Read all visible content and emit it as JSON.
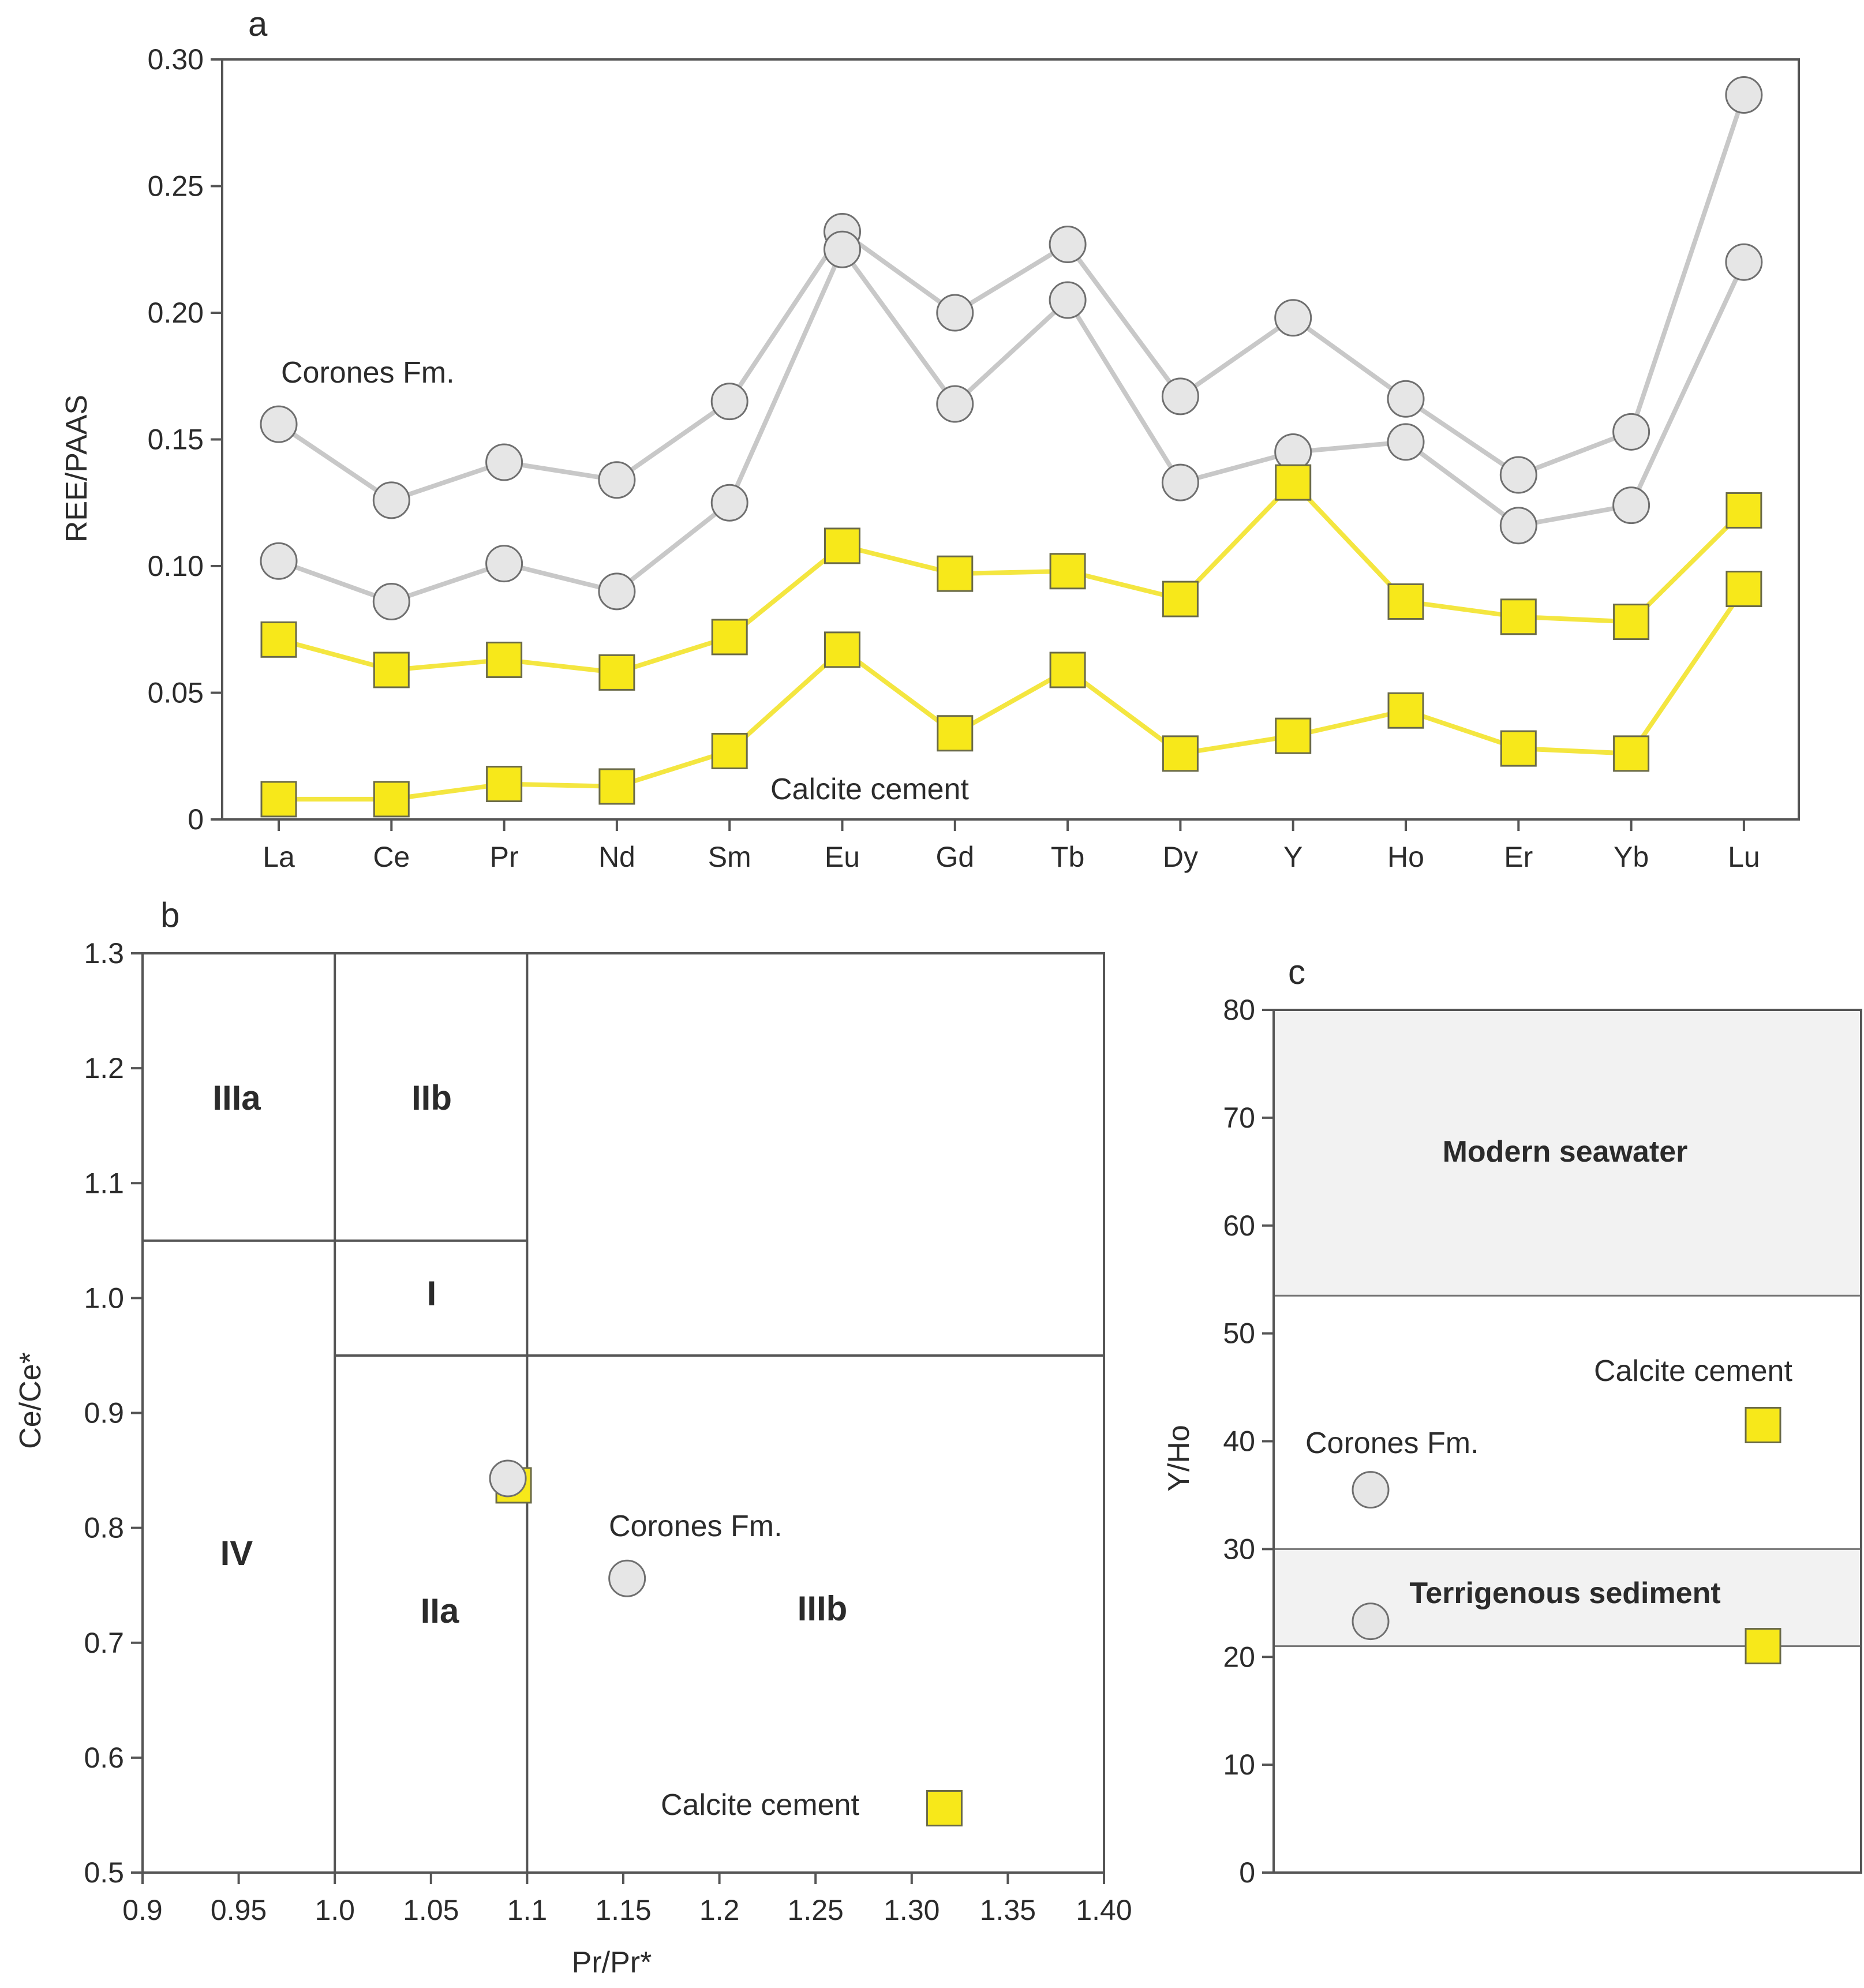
{
  "colors": {
    "corones": "#c8c8c8",
    "corones_fill": "#e6e6e6",
    "calcite": "#f4e640",
    "calcite_fill": "#f7e81a",
    "frame": "#555555",
    "zone": "#f2f2f2"
  },
  "chart_data": [
    {
      "id": "a",
      "panel_label": "a",
      "type": "line",
      "ylabel": "REE/PAAS",
      "xlabel": "",
      "categories": [
        "La",
        "Ce",
        "Pr",
        "Nd",
        "Sm",
        "Eu",
        "Gd",
        "Tb",
        "Dy",
        "Y",
        "Ho",
        "Er",
        "Yb",
        "Lu"
      ],
      "ylim": [
        0,
        0.3
      ],
      "yticks": [
        0,
        0.05,
        0.1,
        0.15,
        0.2,
        0.25,
        0.3
      ],
      "ytick_labels": [
        "0",
        "0.05",
        "0.10",
        "0.15",
        "0.20",
        "0.25",
        "0.30"
      ],
      "series": [
        {
          "name": "Corones Fm. 1",
          "group": "Corones Fm.",
          "marker": "circle",
          "values": [
            0.156,
            0.126,
            0.141,
            0.134,
            0.165,
            0.232,
            0.2,
            0.227,
            0.167,
            0.198,
            0.166,
            0.136,
            0.153,
            0.286
          ]
        },
        {
          "name": "Corones Fm. 2",
          "group": "Corones Fm.",
          "marker": "circle",
          "values": [
            0.102,
            0.086,
            0.101,
            0.09,
            0.125,
            0.225,
            0.164,
            0.205,
            0.133,
            0.145,
            0.149,
            0.116,
            0.124,
            0.22
          ]
        },
        {
          "name": "Calcite cement 1",
          "group": "Calcite cement",
          "marker": "square",
          "values": [
            0.071,
            0.059,
            0.063,
            0.058,
            0.072,
            0.108,
            0.097,
            0.098,
            0.087,
            0.133,
            0.086,
            0.08,
            0.078,
            0.122
          ]
        },
        {
          "name": "Calcite cement 2",
          "group": "Calcite cement",
          "marker": "square",
          "values": [
            0.008,
            0.008,
            0.014,
            0.013,
            0.027,
            0.067,
            0.034,
            0.059,
            0.026,
            0.033,
            0.043,
            0.028,
            0.026,
            0.091
          ]
        }
      ],
      "annotations": {
        "corones": "Corones Fm.",
        "calcite": "Calcite cement"
      }
    },
    {
      "id": "b",
      "panel_label": "b",
      "type": "scatter",
      "xlabel": "Pr/Pr*",
      "ylabel": "Ce/Ce*",
      "xlim": [
        0.9,
        1.4
      ],
      "ylim": [
        0.5,
        1.3
      ],
      "xticks": [
        0.9,
        0.95,
        1.0,
        1.05,
        1.1,
        1.15,
        1.2,
        1.25,
        1.3,
        1.35,
        1.4
      ],
      "xtick_labels": [
        "0.9",
        "0.95",
        "1.0",
        "1.05",
        "1.1",
        "1.15",
        "1.2",
        "1.25",
        "1.30",
        "1.35",
        "1.40"
      ],
      "yticks": [
        0.5,
        0.6,
        0.7,
        0.8,
        0.9,
        1.0,
        1.1,
        1.2,
        1.3
      ],
      "ytick_labels": [
        "0.5",
        "0.6",
        "0.7",
        "0.8",
        "0.9",
        "1.0",
        "1.1",
        "1.2",
        "1.3"
      ],
      "regions": [
        "IIIa",
        "IIb",
        "I",
        "IV",
        "IIa",
        "IIIb"
      ],
      "series": [
        {
          "name": "Corones Fm.",
          "marker": "circle",
          "points": [
            [
              1.09,
              0.843
            ],
            [
              1.152,
              0.756
            ]
          ]
        },
        {
          "name": "Calcite cement",
          "marker": "square",
          "points": [
            [
              1.093,
              0.837
            ],
            [
              1.317,
              0.556
            ]
          ]
        }
      ],
      "annotations": {
        "corones": "Corones Fm.",
        "calcite": "Calcite cement"
      }
    },
    {
      "id": "c",
      "panel_label": "c",
      "type": "scatter",
      "xlabel": "",
      "ylabel": "Y/Ho",
      "ylim": [
        0,
        80
      ],
      "yticks": [
        0,
        10,
        20,
        30,
        40,
        50,
        60,
        70,
        80
      ],
      "ytick_labels": [
        "0",
        "10",
        "20",
        "30",
        "40",
        "50",
        "60",
        "70",
        "80"
      ],
      "zones": [
        {
          "label": "Modern seawater",
          "from": 53.5,
          "to": 80
        },
        {
          "label": "Terrigenous sediment",
          "from": 21,
          "to": 30
        }
      ],
      "series": [
        {
          "name": "Corones Fm.",
          "marker": "circle",
          "column": 0,
          "values": [
            35.5,
            23.3
          ]
        },
        {
          "name": "Calcite cement",
          "marker": "square",
          "column": 1,
          "values": [
            41.5,
            21.0
          ]
        }
      ],
      "annotations": {
        "corones": "Corones Fm.",
        "calcite": "Calcite cement"
      }
    }
  ]
}
